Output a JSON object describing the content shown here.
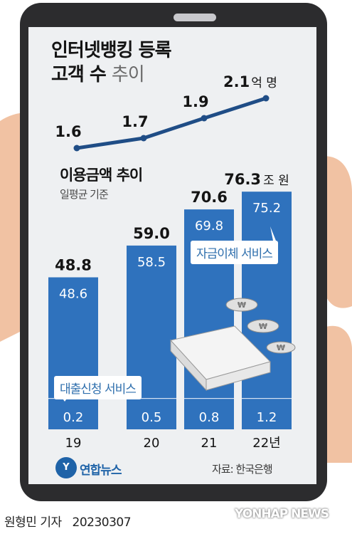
{
  "title_line1": "인터넷뱅킹 등록",
  "title_line2_bold": "고객 수",
  "title_line2_light": "추이",
  "usage_title": "이용금액 추이",
  "usage_note": "일평균 기준",
  "service_transfer": "자금이체 서비스",
  "service_loan": "대출신청 서비스",
  "logo_text": "연합뉴스",
  "source": "자료: 한국은행",
  "byline": "원형민 기자",
  "date": "20230307",
  "watermark": "YONHAP NEWS",
  "colors": {
    "bar_blue": "#2f72bd",
    "line_navy": "#1f4d86",
    "text_dark": "#141414",
    "screen_bg": "#eef0f2"
  },
  "chart_data": [
    {
      "type": "line",
      "title": "인터넷뱅킹 등록 고객 수 추이",
      "x": [
        "19",
        "20",
        "21",
        "22년"
      ],
      "values": [
        1.6,
        1.7,
        1.9,
        2.1
      ],
      "value_labels": [
        "1.6",
        "1.7",
        "1.9",
        "2.1"
      ],
      "unit_label": "억 명"
    },
    {
      "type": "bar",
      "title": "이용금액 추이",
      "subtitle": "일평균 기준",
      "categories": [
        "19",
        "20",
        "21",
        "22년"
      ],
      "total_labels": [
        "48.8",
        "59.0",
        "70.6",
        "76.3"
      ],
      "unit_label": "조 원",
      "series": [
        {
          "name": "자금이체 서비스",
          "values": [
            48.6,
            58.5,
            69.8,
            75.2
          ]
        },
        {
          "name": "대출신청 서비스",
          "values": [
            0.2,
            0.5,
            0.8,
            1.2
          ]
        }
      ],
      "totals": [
        48.8,
        59.0,
        70.6,
        76.3
      ],
      "ylim": [
        0,
        80
      ]
    }
  ]
}
